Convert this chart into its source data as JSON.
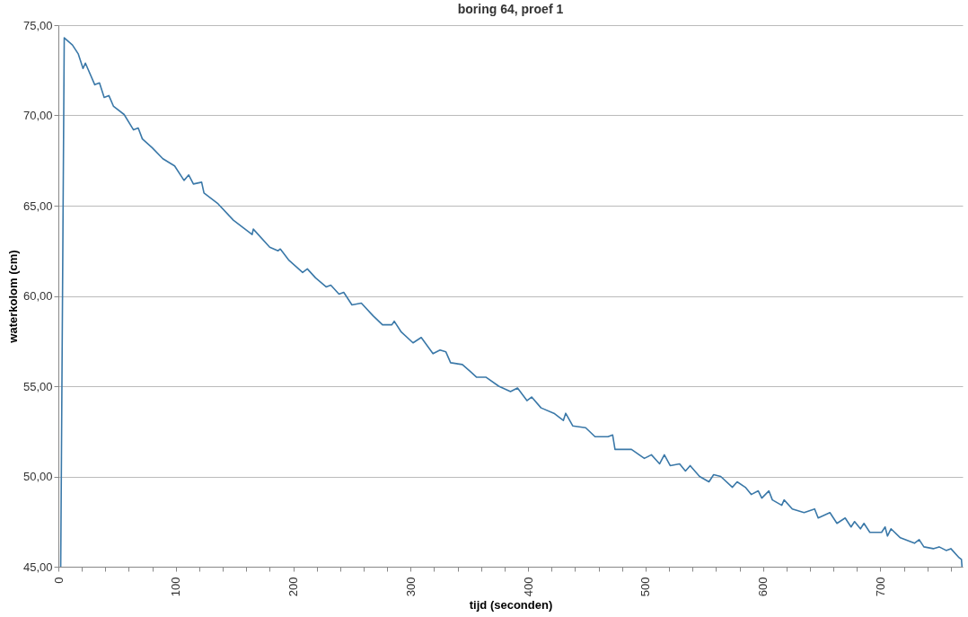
{
  "chart_data": {
    "type": "line",
    "title": "boring 64, proef 1",
    "xlabel": "tijd (seconden)",
    "ylabel": "waterkolom (cm)",
    "xlim": [
      0,
      770
    ],
    "xticks": [
      0,
      {
        "value": 20,
        "label": null
      },
      {
        "value": 40,
        "label": null
      },
      {
        "value": 60,
        "label": null
      },
      {
        "value": 80,
        "label": null
      },
      100,
      {
        "value": 120,
        "label": null
      },
      {
        "value": 140,
        "label": null
      },
      {
        "value": 160,
        "label": null
      },
      {
        "value": 180,
        "label": null
      },
      200,
      {
        "value": 220,
        "label": null
      },
      {
        "value": 240,
        "label": null
      },
      {
        "value": 260,
        "label": null
      },
      {
        "value": 280,
        "label": null
      },
      300,
      {
        "value": 320,
        "label": null
      },
      {
        "value": 340,
        "label": null
      },
      {
        "value": 360,
        "label": null
      },
      {
        "value": 380,
        "label": null
      },
      400,
      {
        "value": 420,
        "label": null
      },
      {
        "value": 440,
        "label": null
      },
      {
        "value": 460,
        "label": null
      },
      {
        "value": 480,
        "label": null
      },
      500,
      {
        "value": 520,
        "label": null
      },
      {
        "value": 540,
        "label": null
      },
      {
        "value": 560,
        "label": null
      },
      {
        "value": 580,
        "label": null
      },
      600,
      {
        "value": 620,
        "label": null
      },
      {
        "value": 640,
        "label": null
      },
      {
        "value": 660,
        "label": null
      },
      {
        "value": 680,
        "label": null
      },
      700,
      {
        "value": 720,
        "label": null
      },
      {
        "value": 740,
        "label": null
      },
      {
        "value": 760,
        "label": null
      }
    ],
    "ylim": [
      45,
      75
    ],
    "yticks": [
      {
        "value": 45,
        "label": "45,00"
      },
      {
        "value": 50,
        "label": "50,00"
      },
      {
        "value": 55,
        "label": "55,00"
      },
      {
        "value": 60,
        "label": "60,00"
      },
      {
        "value": 65,
        "label": "65,00"
      },
      {
        "value": 70,
        "label": "70,00"
      },
      {
        "value": 75,
        "label": "75,00"
      }
    ],
    "grid": "y",
    "legend": false,
    "marker": "none",
    "line_style": "solid",
    "series": [
      {
        "color": "#3a78a8",
        "x": [
          2,
          5,
          12,
          17,
          21,
          23,
          31,
          35,
          39,
          43,
          47,
          56,
          64,
          68,
          71.5,
          80,
          89,
          99,
          107,
          111,
          115,
          122,
          124,
          136,
          149,
          165,
          166,
          180,
          187,
          189,
          196,
          208,
          212,
          219,
          228,
          232,
          239,
          243,
          250,
          258,
          268,
          276,
          284,
          286,
          292,
          302,
          309,
          319,
          325,
          330,
          334,
          344,
          351,
          356,
          364,
          375,
          385,
          391,
          399,
          403,
          411,
          422,
          430,
          432,
          438,
          449,
          457,
          468,
          472,
          474,
          488,
          499,
          505,
          512,
          516,
          521,
          529,
          534,
          538,
          546,
          554,
          558,
          564,
          574,
          578,
          585,
          590,
          596,
          599,
          605,
          608,
          616,
          618,
          625,
          635,
          644,
          647,
          657,
          663,
          670,
          675,
          678,
          683,
          686,
          691,
          701,
          704,
          706,
          709,
          717,
          729,
          733,
          737,
          745,
          750,
          756,
          760,
          767,
          769,
          769.5
        ],
        "values": [
          45,
          74.3,
          73.9,
          73.4,
          72.6,
          72.9,
          71.7,
          71.8,
          71.0,
          71.1,
          70.5,
          70.05,
          69.2,
          69.3,
          68.7,
          68.2,
          67.6,
          67.2,
          66.4,
          66.7,
          66.2,
          66.3,
          65.7,
          65.1,
          64.2,
          63.4,
          63.7,
          62.7,
          62.5,
          62.6,
          62.0,
          61.3,
          61.5,
          61.0,
          60.5,
          60.6,
          60.1,
          60.2,
          59.5,
          59.6,
          58.9,
          58.4,
          58.4,
          58.6,
          58.0,
          57.4,
          57.7,
          56.8,
          57.0,
          56.9,
          56.3,
          56.2,
          55.8,
          55.5,
          55.5,
          55.0,
          54.7,
          54.9,
          54.2,
          54.4,
          53.8,
          53.5,
          53.1,
          53.5,
          52.8,
          52.7,
          52.2,
          52.2,
          52.3,
          51.5,
          51.5,
          51.0,
          51.2,
          50.7,
          51.2,
          50.6,
          50.7,
          50.3,
          50.6,
          50.0,
          49.7,
          50.1,
          50.0,
          49.4,
          49.7,
          49.4,
          49.0,
          49.2,
          48.8,
          49.2,
          48.7,
          48.4,
          48.7,
          48.2,
          48.0,
          48.2,
          47.7,
          48.0,
          47.4,
          47.7,
          47.2,
          47.5,
          47.1,
          47.4,
          46.9,
          46.9,
          47.2,
          46.7,
          47.1,
          46.6,
          46.3,
          46.5,
          46.1,
          46.0,
          46.1,
          45.9,
          46.0,
          45.5,
          45.4,
          45.0
        ]
      }
    ]
  }
}
